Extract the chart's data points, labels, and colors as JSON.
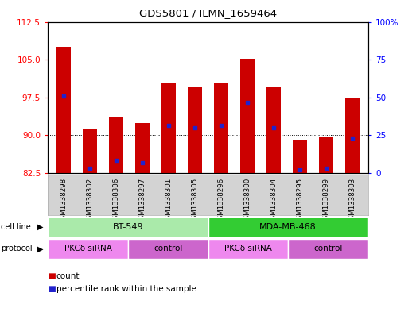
{
  "title": "GDS5801 / ILMN_1659464",
  "samples": [
    "GSM1338298",
    "GSM1338302",
    "GSM1338306",
    "GSM1338297",
    "GSM1338301",
    "GSM1338305",
    "GSM1338296",
    "GSM1338300",
    "GSM1338304",
    "GSM1338295",
    "GSM1338299",
    "GSM1338303"
  ],
  "bar_heights": [
    107.5,
    91.2,
    93.5,
    92.5,
    100.5,
    99.5,
    100.5,
    105.2,
    99.5,
    89.2,
    89.8,
    97.5
  ],
  "blue_dot_values": [
    97.8,
    83.5,
    85.0,
    84.5,
    92.0,
    91.5,
    92.0,
    96.5,
    91.5,
    83.2,
    83.5,
    89.5
  ],
  "ymin": 82.5,
  "ymax": 112.5,
  "yticks_left": [
    82.5,
    90.0,
    97.5,
    105.0,
    112.5
  ],
  "yticks_right_vals": [
    0,
    25,
    50,
    75,
    100
  ],
  "yticks_right_labels": [
    "0",
    "25",
    "50",
    "75",
    "100%"
  ],
  "bar_color": "#cc0000",
  "dot_color": "#2222cc",
  "bar_width": 0.55,
  "cell_line_labels": [
    {
      "text": "BT-549",
      "start": 0,
      "end": 5,
      "color": "#aaeaaa"
    },
    {
      "text": "MDA-MB-468",
      "start": 6,
      "end": 11,
      "color": "#33cc33"
    }
  ],
  "protocol_labels": [
    {
      "text": "PKCδ siRNA",
      "start": 0,
      "end": 2,
      "color": "#ee88ee"
    },
    {
      "text": "control",
      "start": 3,
      "end": 5,
      "color": "#cc66cc"
    },
    {
      "text": "PKCδ siRNA",
      "start": 6,
      "end": 8,
      "color": "#ee88ee"
    },
    {
      "text": "control",
      "start": 9,
      "end": 11,
      "color": "#cc66cc"
    }
  ],
  "legend_count_color": "#cc0000",
  "legend_dot_color": "#2222cc",
  "left_axis_color": "red",
  "right_axis_color": "blue",
  "grid_color": "black",
  "label_bg": "#d3d3d3"
}
